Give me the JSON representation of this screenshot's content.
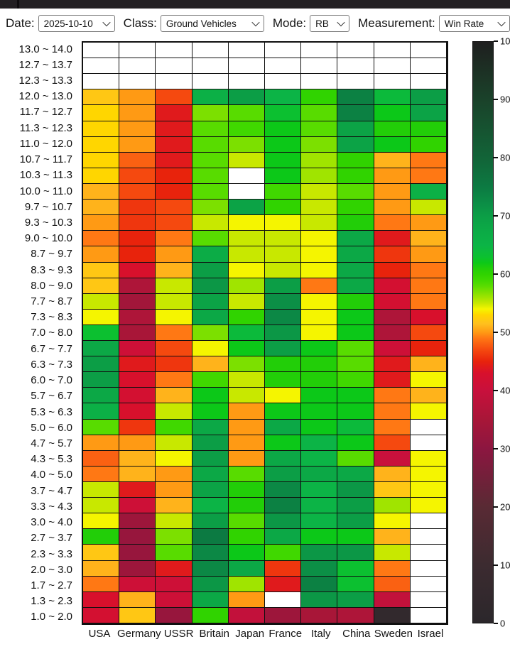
{
  "toolbar": {
    "date_label": "Date:",
    "date_value": "2025-10-10",
    "class_label": "Class:",
    "class_value": "Ground Vehicles",
    "mode_label": "Mode:",
    "mode_value": "RB",
    "measurement_label": "Measurement:",
    "measurement_value": "Win Rate"
  },
  "colors": {
    "background": "#ffffff",
    "grid_line": "#101010",
    "empty_cell": "#ffffff",
    "header_bar": "#232023"
  },
  "chart_data": {
    "type": "heatmap",
    "measurement": "Win Rate",
    "x_categories": [
      "USA",
      "Germany",
      "USSR",
      "Britain",
      "Japan",
      "France",
      "Italy",
      "China",
      "Sweden",
      "Israel"
    ],
    "y_categories": [
      "13.0 ~ 14.0",
      "12.7 ~ 13.7",
      "12.3 ~ 13.3",
      "12.0 ~ 13.0",
      "11.7 ~ 12.7",
      "11.3 ~ 12.3",
      "11.0 ~ 12.0",
      "10.7 ~ 11.7",
      "10.3 ~ 11.3",
      "10.0 ~ 11.0",
      "9.7 ~ 10.7",
      "9.3 ~ 10.3",
      "9.0 ~ 10.0",
      "8.7 ~ 9.7",
      "8.3 ~ 9.3",
      "8.0 ~ 9.0",
      "7.7 ~ 8.7",
      "7.3 ~ 8.3",
      "7.0 ~ 8.0",
      "6.7 ~ 7.7",
      "6.3 ~ 7.3",
      "6.0 ~ 7.0",
      "5.7 ~ 6.7",
      "5.3 ~ 6.3",
      "5.0 ~ 6.0",
      "4.7 ~ 5.7",
      "4.3 ~ 5.3",
      "4.0 ~ 5.0",
      "3.7 ~ 4.7",
      "3.3 ~ 4.3",
      "3.0 ~ 4.0",
      "2.7 ~ 3.7",
      "2.3 ~ 3.3",
      "2.0 ~ 3.0",
      "1.7 ~ 2.7",
      "1.3 ~ 2.3",
      "1.0 ~ 2.0"
    ],
    "values": [
      [
        null,
        null,
        null,
        null,
        null,
        null,
        null,
        null,
        null,
        null
      ],
      [
        null,
        null,
        null,
        null,
        null,
        null,
        null,
        null,
        null,
        null
      ],
      [
        null,
        null,
        null,
        null,
        null,
        null,
        null,
        null,
        null,
        null
      ],
      [
        52,
        50,
        47,
        66,
        70,
        65,
        60,
        74,
        64,
        70
      ],
      [
        53,
        50,
        44,
        57,
        58,
        63,
        58,
        74,
        62,
        69
      ],
      [
        53,
        50,
        44,
        58,
        59,
        62,
        58,
        69,
        61,
        61
      ],
      [
        53,
        50,
        44,
        58,
        57,
        62,
        57,
        69,
        62,
        60
      ],
      [
        53,
        48,
        44,
        58,
        55,
        62,
        56,
        60,
        51,
        49
      ],
      [
        53,
        47,
        45,
        58,
        null,
        62,
        56,
        60,
        50,
        49
      ],
      [
        51,
        47,
        45,
        58,
        null,
        59,
        55,
        58,
        50,
        66
      ],
      [
        51,
        46,
        47,
        57,
        69,
        60,
        55,
        60,
        50,
        55
      ],
      [
        50,
        46,
        47,
        55,
        54,
        54,
        55,
        61,
        49,
        50
      ],
      [
        49,
        45,
        49,
        58,
        55,
        55,
        54,
        68,
        44,
        51
      ],
      [
        50,
        45,
        50,
        67,
        55,
        55,
        54,
        68,
        46,
        50
      ],
      [
        52,
        43,
        51,
        70,
        54,
        55,
        54,
        68,
        45,
        49
      ],
      [
        52,
        36,
        55,
        71,
        56,
        70,
        49,
        68,
        42,
        49
      ],
      [
        55,
        34,
        55,
        69,
        55,
        72,
        54,
        61,
        42,
        49
      ],
      [
        54,
        36,
        54,
        68,
        60,
        73,
        54,
        62,
        36,
        43
      ],
      [
        63,
        35,
        49,
        57,
        64,
        71,
        54,
        62,
        36,
        47
      ],
      [
        68,
        41,
        47,
        54,
        62,
        70,
        62,
        58,
        41,
        45
      ],
      [
        70,
        44,
        46,
        51,
        57,
        61,
        61,
        58,
        44,
        51
      ],
      [
        70,
        43,
        49,
        59,
        55,
        61,
        61,
        59,
        44,
        54
      ],
      [
        68,
        42,
        51,
        62,
        55,
        54,
        62,
        62,
        49,
        51
      ],
      [
        66,
        43,
        55,
        62,
        50,
        62,
        62,
        62,
        49,
        54
      ],
      [
        58,
        46,
        59,
        68,
        50,
        68,
        62,
        64,
        49,
        null
      ],
      [
        50,
        50,
        55,
        70,
        50,
        62,
        65,
        62,
        47,
        null
      ],
      [
        48,
        51,
        54,
        70,
        50,
        68,
        65,
        58,
        40,
        54
      ],
      [
        49,
        51,
        50,
        68,
        58,
        70,
        68,
        68,
        51,
        54
      ],
      [
        55,
        44,
        50,
        69,
        61,
        73,
        65,
        71,
        52,
        54
      ],
      [
        55,
        41,
        51,
        65,
        61,
        74,
        65,
        70,
        56,
        54
      ],
      [
        54,
        33,
        55,
        70,
        58,
        71,
        65,
        70,
        54,
        null
      ],
      [
        61,
        32,
        57,
        75,
        60,
        68,
        62,
        62,
        51,
        null
      ],
      [
        52,
        32,
        58,
        73,
        62,
        59,
        71,
        71,
        55,
        null
      ],
      [
        51,
        33,
        44,
        73,
        68,
        46,
        72,
        63,
        49,
        null
      ],
      [
        49,
        41,
        41,
        71,
        56,
        44,
        74,
        63,
        48,
        null
      ],
      [
        43,
        51,
        41,
        68,
        50,
        null,
        71,
        70,
        39,
        null
      ],
      [
        42,
        52,
        32,
        60,
        39,
        33,
        35,
        36,
        4,
        null
      ]
    ],
    "colorbar": {
      "min": 0,
      "max": 100,
      "ticks": [
        0,
        10,
        20,
        30,
        40,
        50,
        60,
        70,
        80,
        90,
        100
      ],
      "position": "right"
    },
    "color_stops": [
      [
        0,
        "#2b272b"
      ],
      [
        10,
        "#3c2b30"
      ],
      [
        20,
        "#592a34"
      ],
      [
        30,
        "#8c1640"
      ],
      [
        35,
        "#a81638"
      ],
      [
        40,
        "#c8103c"
      ],
      [
        43,
        "#d8102c"
      ],
      [
        45,
        "#e8230c"
      ],
      [
        47,
        "#f5490f"
      ],
      [
        49,
        "#ff7814"
      ],
      [
        50,
        "#ff9a14"
      ],
      [
        51.5,
        "#ffc01e"
      ],
      [
        53,
        "#ffd600"
      ],
      [
        54,
        "#f5f500"
      ],
      [
        55,
        "#c8e800"
      ],
      [
        56,
        "#a0e400"
      ],
      [
        57,
        "#7ce000"
      ],
      [
        58,
        "#58dc00"
      ],
      [
        59,
        "#40d800"
      ],
      [
        60,
        "#30d300"
      ],
      [
        61,
        "#22ce08"
      ],
      [
        62,
        "#0cc818"
      ],
      [
        63,
        "#0cc030"
      ],
      [
        65,
        "#0cb446"
      ],
      [
        68,
        "#0ca846"
      ],
      [
        70,
        "#0c9e46"
      ],
      [
        72,
        "#0c8f46"
      ],
      [
        75,
        "#0c7a42"
      ],
      [
        80,
        "#126438"
      ],
      [
        90,
        "#1a422a"
      ],
      [
        100,
        "#1f1f1f"
      ]
    ],
    "grid": true,
    "legend_position": "right-colorbar"
  }
}
